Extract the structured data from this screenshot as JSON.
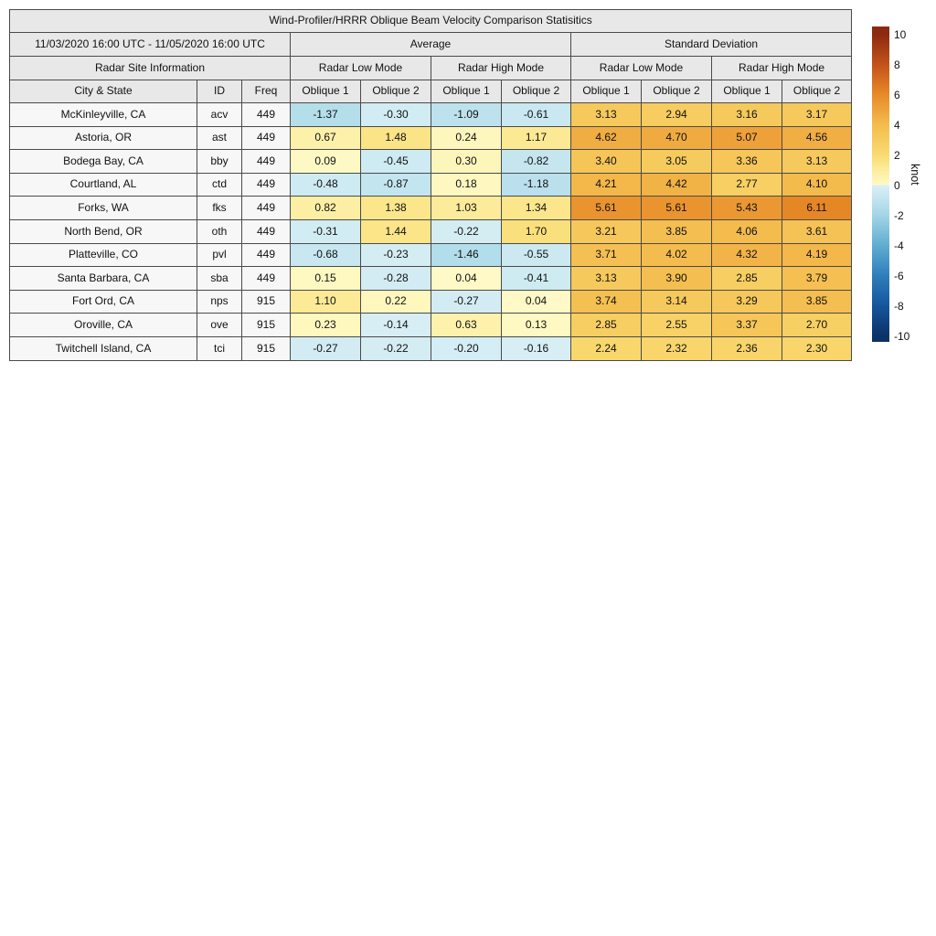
{
  "title": "Wind-Profiler/HRRR Oblique Beam Velocity Comparison Statisitics",
  "header": {
    "date_range": "11/03/2020 16:00 UTC - 11/05/2020 16:00 UTC",
    "group_average": "Average",
    "group_std": "Standard Deviation",
    "site_info": "Radar Site Information",
    "mode_cols": [
      "Radar Low Mode",
      "Radar High Mode",
      "Radar Low Mode",
      "Radar High Mode"
    ],
    "col_city": "City & State",
    "col_id": "ID",
    "col_freq": "Freq",
    "oblique_cols": [
      "Oblique 1",
      "Oblique 2",
      "Oblique 1",
      "Oblique 2",
      "Oblique 1",
      "Oblique 2",
      "Oblique 1",
      "Oblique 2"
    ]
  },
  "chart_data": {
    "type": "table",
    "title": "Wind-Profiler/HRRR Oblique Beam Velocity Comparison Statisitics",
    "period": "11/03/2020 16:00 UTC - 11/05/2020 16:00 UTC",
    "column_groups": [
      "Radar Site Information",
      "Average",
      "Standard Deviation"
    ],
    "value_columns": [
      "Average Radar Low Mode Oblique 1",
      "Average Radar Low Mode Oblique 2",
      "Average Radar High Mode Oblique 1",
      "Average Radar High Mode Oblique 2",
      "Std Dev Radar Low Mode Oblique 1",
      "Std Dev Radar Low Mode Oblique 2",
      "Std Dev Radar High Mode Oblique 1",
      "Std Dev Radar High Mode Oblique 2"
    ],
    "rows": [
      {
        "city": "McKinleyville, CA",
        "id": "acv",
        "freq": "449",
        "values": [
          -1.37,
          -0.3,
          -1.09,
          -0.61,
          3.13,
          2.94,
          3.16,
          3.17
        ]
      },
      {
        "city": "Astoria, OR",
        "id": "ast",
        "freq": "449",
        "values": [
          0.67,
          1.48,
          0.24,
          1.17,
          4.62,
          4.7,
          5.07,
          4.56
        ]
      },
      {
        "city": "Bodega Bay, CA",
        "id": "bby",
        "freq": "449",
        "values": [
          0.09,
          -0.45,
          0.3,
          -0.82,
          3.4,
          3.05,
          3.36,
          3.13
        ]
      },
      {
        "city": "Courtland, AL",
        "id": "ctd",
        "freq": "449",
        "values": [
          -0.48,
          -0.87,
          0.18,
          -1.18,
          4.21,
          4.42,
          2.77,
          4.1
        ]
      },
      {
        "city": "Forks, WA",
        "id": "fks",
        "freq": "449",
        "values": [
          0.82,
          1.38,
          1.03,
          1.34,
          5.61,
          5.61,
          5.43,
          6.11
        ]
      },
      {
        "city": "North Bend, OR",
        "id": "oth",
        "freq": "449",
        "values": [
          -0.31,
          1.44,
          -0.22,
          1.7,
          3.21,
          3.85,
          4.06,
          3.61
        ]
      },
      {
        "city": "Platteville, CO",
        "id": "pvl",
        "freq": "449",
        "values": [
          -0.68,
          -0.23,
          -1.46,
          -0.55,
          3.71,
          4.02,
          4.32,
          4.19
        ]
      },
      {
        "city": "Santa Barbara, CA",
        "id": "sba",
        "freq": "449",
        "values": [
          0.15,
          -0.28,
          0.04,
          -0.41,
          3.13,
          3.9,
          2.85,
          3.79
        ]
      },
      {
        "city": "Fort Ord, CA",
        "id": "nps",
        "freq": "915",
        "values": [
          1.1,
          0.22,
          -0.27,
          0.04,
          3.74,
          3.14,
          3.29,
          3.85
        ]
      },
      {
        "city": "Oroville, CA",
        "id": "ove",
        "freq": "915",
        "values": [
          0.23,
          -0.14,
          0.63,
          0.13,
          2.85,
          2.55,
          3.37,
          2.7
        ]
      },
      {
        "city": "Twitchell Island, CA",
        "id": "tci",
        "freq": "915",
        "values": [
          -0.27,
          -0.22,
          -0.2,
          -0.16,
          2.24,
          2.32,
          2.36,
          2.3
        ]
      }
    ],
    "colorbar": {
      "label": "knot",
      "min": -10,
      "max": 10,
      "ticks": [
        10,
        8,
        6,
        4,
        2,
        0,
        -2,
        -4,
        -6,
        -8,
        -10
      ],
      "colormap_stops": [
        [
          -10,
          "#0B3369"
        ],
        [
          -8,
          "#15559C"
        ],
        [
          -6,
          "#2F7EBC"
        ],
        [
          -4,
          "#60ADD1"
        ],
        [
          -2,
          "#A2D5E6"
        ],
        [
          -1,
          "#C0E3EE"
        ],
        [
          -0.001,
          "#DAF0F5"
        ],
        [
          0.001,
          "#FEFAC8"
        ],
        [
          1,
          "#FCEC9B"
        ],
        [
          2,
          "#F9DB70"
        ],
        [
          4,
          "#F4BC4E"
        ],
        [
          6,
          "#E88A27"
        ],
        [
          8,
          "#C2521A"
        ],
        [
          10,
          "#8C2A10"
        ]
      ]
    }
  }
}
